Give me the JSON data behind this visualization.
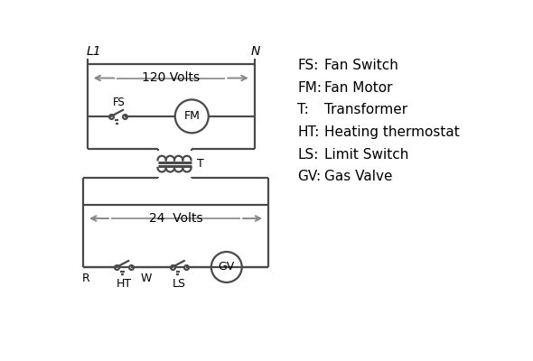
{
  "background_color": "#ffffff",
  "line_color": "#4a4a4a",
  "text_color": "#000000",
  "legend_items": [
    [
      "FS:",
      "Fan Switch"
    ],
    [
      "FM:",
      "Fan Motor"
    ],
    [
      "T:",
      "Transformer"
    ],
    [
      "HT:",
      "Heating thermostat"
    ],
    [
      "LS:",
      "Limit Switch"
    ],
    [
      "GV:",
      "Gas Valve"
    ]
  ],
  "L1_label": "L1",
  "N_label": "N",
  "volts120_label": "120 Volts",
  "volts24_label": "24  Volts",
  "T_label": "T",
  "R_label": "R",
  "W_label": "W",
  "HT_label": "HT",
  "LS_label": "LS",
  "FS_label": "FS",
  "FM_label": "FM",
  "GV_label": "GV",
  "figsize": [
    5.9,
    4.0
  ],
  "dpi": 100,
  "xlim": [
    0,
    590
  ],
  "ylim": [
    0,
    400
  ]
}
